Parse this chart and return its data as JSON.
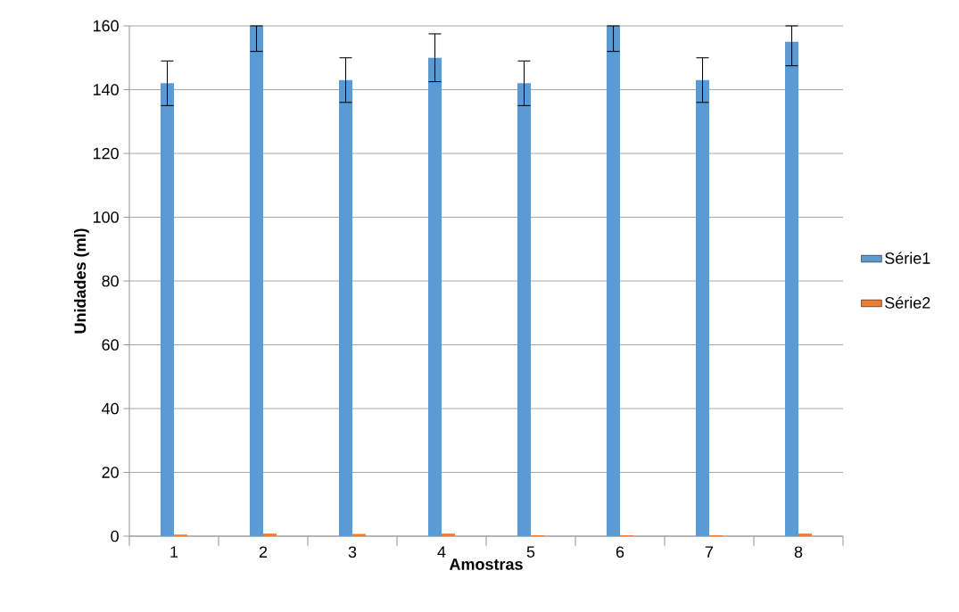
{
  "chart_data": {
    "type": "bar",
    "xlabel": "Amostras",
    "ylabel": "Unidades (ml)",
    "categories": [
      "1",
      "2",
      "3",
      "4",
      "5",
      "6",
      "7",
      "8"
    ],
    "series": [
      {
        "name": "Série1",
        "color": "#5b9bd5",
        "values": [
          142,
          160,
          143,
          150,
          142,
          160,
          143,
          155
        ],
        "errors": [
          7,
          [
            152,
            160
          ],
          7,
          7.5,
          7,
          [
            152,
            160
          ],
          7,
          [
            147.5,
            160
          ]
        ]
      },
      {
        "name": "Série2",
        "color": "#ed7d31",
        "values": [
          0.5,
          0.8,
          0.7,
          0.8,
          0.3,
          0.3,
          0.3,
          0.8
        ]
      }
    ],
    "ylim": [
      0,
      160
    ],
    "yticks": [
      0,
      20,
      40,
      60,
      80,
      100,
      120,
      140,
      160
    ],
    "grid": "y",
    "legend": "right"
  }
}
